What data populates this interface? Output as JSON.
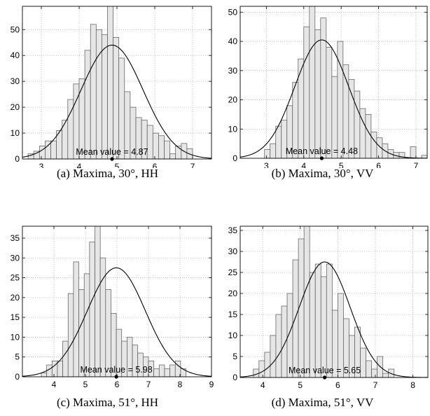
{
  "chart_data": [
    {
      "type": "bar",
      "caption": "(a) Maxima, 30°, HH",
      "annotation": "Mean value = 4.87",
      "mean": 4.87,
      "fit_peak": 44,
      "fit_sigma": 0.82,
      "bin_start": 2.5,
      "bin_width": 0.15,
      "values": [
        0,
        2,
        3,
        5,
        7,
        7,
        11,
        15,
        23,
        29,
        31,
        42,
        52,
        50,
        48,
        59,
        47,
        39,
        26,
        20,
        16,
        15,
        13,
        10,
        9,
        7,
        2,
        5,
        6,
        4
      ],
      "xlim": [
        2.5,
        7.5
      ],
      "ylim": [
        0,
        59
      ],
      "xticks": [
        3,
        4,
        5,
        6,
        7
      ],
      "yticks": [
        0,
        10,
        20,
        30,
        40,
        50
      ],
      "grid": true
    },
    {
      "type": "bar",
      "caption": "(b) Maxima, 30°, VV",
      "annotation": "Mean value = 4.48",
      "mean": 4.48,
      "fit_peak": 40.5,
      "fit_sigma": 0.72,
      "bin_start": 2.5,
      "bin_width": 0.15,
      "values": [
        0,
        0,
        0,
        3,
        5,
        11,
        13,
        18,
        26,
        34,
        45,
        52,
        44,
        48,
        38,
        28,
        40,
        32,
        27,
        23,
        17,
        15,
        9,
        7,
        5,
        3,
        2,
        2,
        0,
        4,
        0,
        1
      ],
      "xlim": [
        2.3,
        7.3
      ],
      "ylim": [
        0,
        52
      ],
      "xticks": [
        3,
        4,
        5,
        6,
        7
      ],
      "yticks": [
        0,
        10,
        20,
        30,
        40,
        50
      ],
      "grid": true
    },
    {
      "type": "bar",
      "caption": "(c) Maxima, 51°, HH",
      "annotation": "Mean value = 5.98",
      "mean": 5.98,
      "fit_peak": 27.5,
      "fit_sigma": 0.92,
      "bin_start": 3.6,
      "bin_width": 0.17,
      "values": [
        1,
        3,
        4,
        4,
        9,
        21,
        29,
        22,
        26,
        34,
        38,
        30,
        22,
        16,
        12,
        9,
        10,
        8,
        6,
        5,
        4,
        2,
        3,
        2,
        3,
        4,
        2
      ],
      "xlim": [
        3,
        9
      ],
      "ylim": [
        0,
        38
      ],
      "xticks": [
        4,
        5,
        6,
        7,
        8,
        9
      ],
      "yticks": [
        0,
        5,
        10,
        15,
        20,
        25,
        30,
        35
      ],
      "grid": true
    },
    {
      "type": "bar",
      "caption": "(d) Maxima, 51°, VV",
      "annotation": "Mean value = 5.65",
      "mean": 5.65,
      "fit_peak": 27.5,
      "fit_sigma": 0.68,
      "bin_start": 3.6,
      "bin_width": 0.15,
      "values": [
        0,
        2,
        4,
        6,
        10,
        15,
        17,
        20,
        28,
        33,
        36,
        25,
        27,
        24,
        27,
        16,
        20,
        14,
        10,
        12,
        7,
        4,
        2,
        5,
        1,
        2
      ],
      "xlim": [
        3.4,
        8.4
      ],
      "ylim": [
        0,
        36
      ],
      "xticks": [
        4,
        5,
        6,
        7,
        8
      ],
      "yticks": [
        0,
        5,
        10,
        15,
        20,
        25,
        30,
        35
      ],
      "grid": true
    }
  ]
}
